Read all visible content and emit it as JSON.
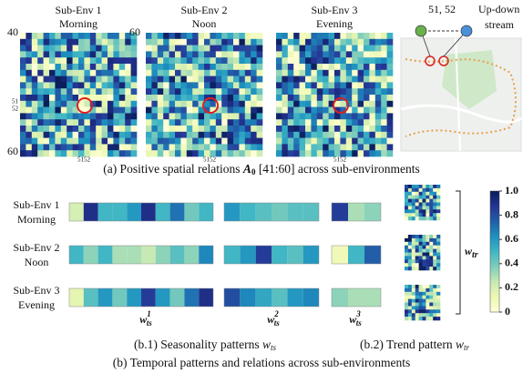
{
  "panel_a": {
    "envs": [
      {
        "name": "Sub-Env 1",
        "time": "Morning"
      },
      {
        "name": "Sub-Env 2",
        "time": "Noon"
      },
      {
        "name": "Sub-Env 3",
        "time": "Evening"
      }
    ],
    "axis_start": "40",
    "axis_end": "60",
    "row_tick_1": "51",
    "row_tick_2": "52",
    "col_ticks": "5152",
    "map_legend": {
      "nodes": "51, 52",
      "relation_1": "Up-down",
      "relation_2": "stream"
    },
    "caption": {
      "prefix": "(a) Positive spatial relations ",
      "symbol": "A",
      "subscript": "0",
      "suffix": " [41:60] across sub-environments"
    }
  },
  "panel_b": {
    "rows": [
      {
        "name": "Sub-Env 1",
        "time": "Morning",
        "w1": [
          0.2,
          0.9,
          0.5,
          0.5,
          0.6,
          0.9,
          0.5,
          0.7,
          0.4,
          0.5
        ],
        "w2": [
          0.6,
          0.5,
          0.45,
          0.4,
          0.45,
          0.45
        ],
        "w3": [
          0.85,
          0.3,
          0.35
        ]
      },
      {
        "name": "Sub-Env 2",
        "time": "Noon",
        "w1": [
          0.5,
          0.35,
          0.5,
          0.3,
          0.3,
          0.25,
          0.35,
          0.45,
          0.35,
          0.65
        ],
        "w2": [
          0.5,
          0.6,
          0.85,
          0.5,
          0.45,
          0.6
        ],
        "w3": [
          0.1,
          0.5,
          0.75
        ]
      },
      {
        "name": "Sub-Env 3",
        "time": "Evening",
        "w1": [
          0.15,
          0.45,
          0.6,
          0.4,
          0.6,
          0.85,
          0.6,
          0.4,
          0.7,
          0.9
        ],
        "w2": [
          0.8,
          0.65,
          0.55,
          0.45,
          0.6,
          0.65
        ],
        "w3": [
          0.35,
          0.3,
          0.3
        ]
      }
    ],
    "strip_labels": [
      {
        "base": "w",
        "sub": "ts",
        "sup": "1"
      },
      {
        "base": "w",
        "sub": "ts",
        "sup": "2"
      },
      {
        "base": "w",
        "sub": "ts",
        "sup": "3"
      }
    ],
    "trend_label": {
      "base": "w",
      "sub": "tr"
    },
    "clim": [
      0,
      1
    ],
    "colorbar_ticks": [
      {
        "value": 1,
        "label": "1.0"
      },
      0.8,
      0.6,
      0.4,
      0.2,
      0
    ],
    "caption_b1": {
      "text": "(b.1) Seasonality patterns ",
      "base": "w",
      "sub": "ts"
    },
    "caption_b2": {
      "text": "(b.2) Trend pattern ",
      "base": "w",
      "sub": "tr"
    },
    "caption_b": "(b) Temporal patterns and relations across sub-environments"
  }
}
